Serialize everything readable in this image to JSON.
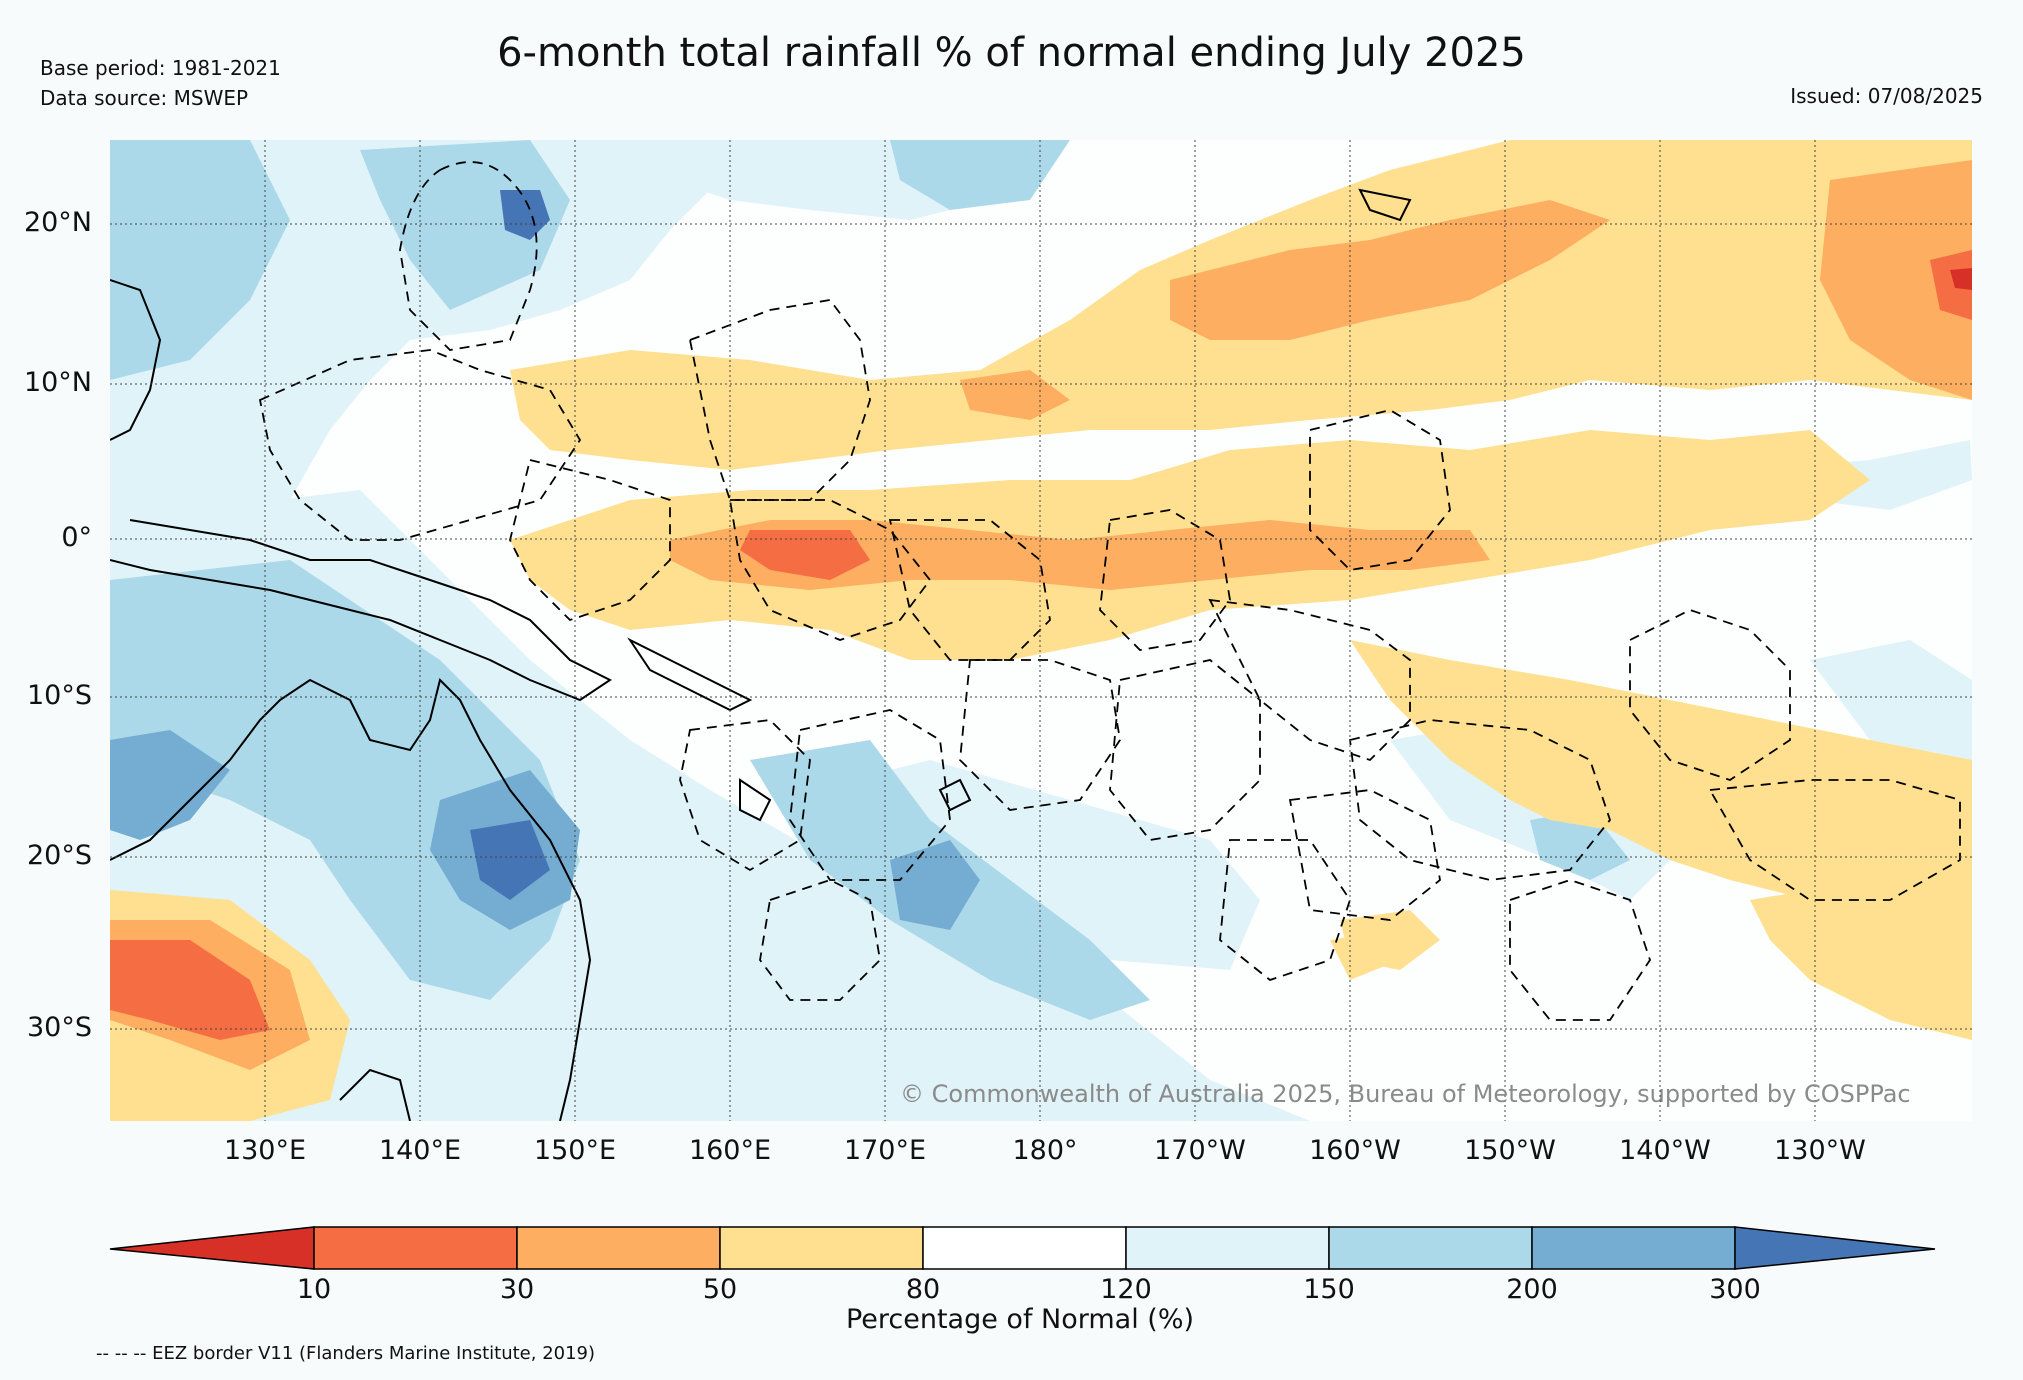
{
  "header": {
    "title": "6-month total rainfall % of normal ending July 2025",
    "base_period": "Base period: 1981-2021",
    "data_source": "Data source: MSWEP",
    "issued": "Issued: 07/08/2025"
  },
  "map": {
    "lat_labels": [
      "20°N",
      "10°N",
      "0°",
      "10°S",
      "20°S",
      "30°S"
    ],
    "lon_labels": [
      "130°E",
      "140°E",
      "150°E",
      "160°E",
      "170°E",
      "180°",
      "170°W",
      "160°W",
      "150°W",
      "140°W",
      "130°W"
    ],
    "copyright": "© Commonwealth of Australia 2025, Bureau of Meteorology, supported by COSPPac"
  },
  "colorbar": {
    "ticks": [
      "10",
      "30",
      "50",
      "80",
      "120",
      "150",
      "200",
      "300"
    ],
    "label": "Percentage of Normal (%)",
    "colors": [
      "#d73027",
      "#f46d43",
      "#fdae61",
      "#fee090",
      "#ffffff",
      "#e0f3f8",
      "#abd9e9",
      "#74add1",
      "#4575b4"
    ]
  },
  "footer": {
    "eez_note": "-- -- -- EEZ border V11 (Flanders Marine Institute, 2019)"
  },
  "colors": {
    "very_dry": "#d73027",
    "dry_30": "#f46d43",
    "dry_50": "#fdae61",
    "dry_80": "#fee090",
    "near_normal": "#ffffff",
    "wet_150": "#e0f3f8",
    "wet_200": "#abd9e9",
    "wet_300": "#74add1",
    "very_wet": "#4575b4"
  }
}
